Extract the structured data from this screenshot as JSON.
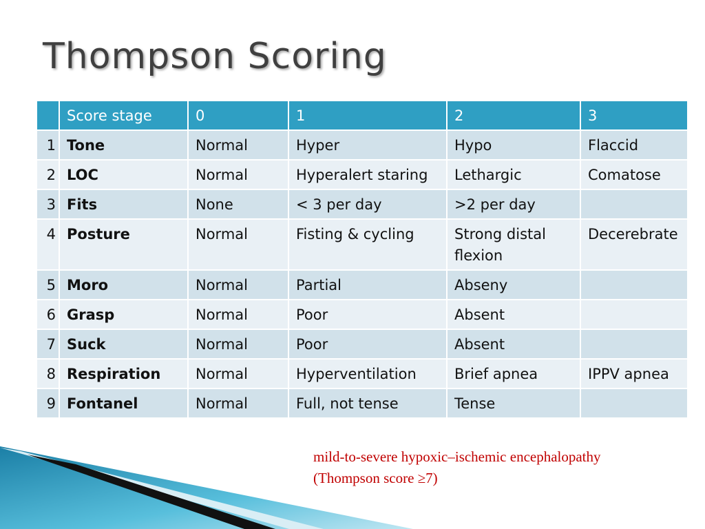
{
  "title": "Thompson Scoring",
  "table": {
    "header": [
      null,
      "Score stage",
      "0",
      "1",
      "2",
      "3"
    ],
    "rows": [
      [
        "1",
        "Tone",
        "Normal",
        "Hyper",
        "Hypo",
        "Flaccid"
      ],
      [
        "2",
        "LOC",
        "Normal",
        "Hyperalert staring",
        "Lethargic",
        "Comatose"
      ],
      [
        "3",
        "Fits",
        "None",
        "< 3 per day",
        ">2 per day",
        null
      ],
      [
        "4",
        "Posture",
        "Normal",
        "Fisting & cycling",
        "Strong distal flexion",
        "Decerebrate"
      ],
      [
        "5",
        "Moro",
        "Normal",
        "Partial",
        "Abseny",
        null
      ],
      [
        "6",
        "Grasp",
        "Normal",
        "Poor",
        "Absent",
        null
      ],
      [
        "7",
        "Suck",
        "Normal",
        "Poor",
        "Absent",
        null
      ],
      [
        "8",
        "Respiration",
        "Normal",
        "Hyperventilation",
        "Brief apnea",
        "IPPV apnea"
      ],
      [
        "9",
        "Fontanel",
        "Normal",
        "Full, not tense",
        "Tense",
        null
      ]
    ]
  },
  "note": [
    "mild-to-severe hypoxic–ischemic encephalopathy",
    "(Thompson score ≥7)"
  ]
}
